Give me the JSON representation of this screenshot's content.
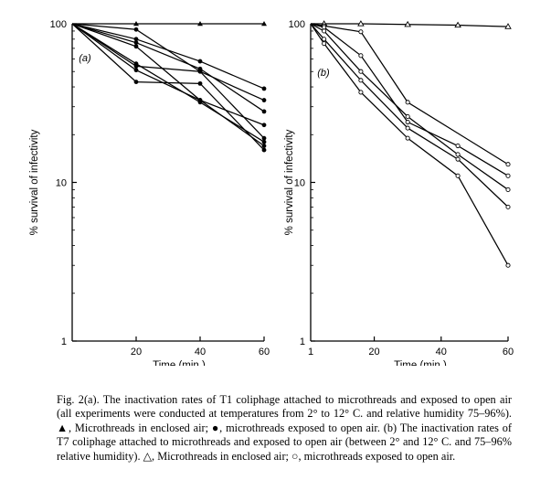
{
  "chart_data": [
    {
      "type": "line",
      "panel_label": "(a)",
      "ylabel": "% survival of infectivity",
      "xlabel": "Time (min.)",
      "y_scale": "log",
      "ylim": [
        1,
        100
      ],
      "xlim": [
        0,
        60
      ],
      "x_ticks": [
        "20",
        "40",
        "60"
      ],
      "y_ticks": [
        "1",
        "10",
        "100"
      ],
      "series": [
        {
          "marker": "triangle-filled",
          "points": [
            [
              0,
              100
            ],
            [
              20,
              100
            ],
            [
              40,
              100
            ],
            [
              60,
              100
            ]
          ]
        },
        {
          "marker": "circle-filled",
          "points": [
            [
              0,
              100
            ],
            [
              20,
              80
            ],
            [
              40,
              58
            ],
            [
              60,
              39
            ]
          ]
        },
        {
          "marker": "circle-filled",
          "points": [
            [
              0,
              100
            ],
            [
              20,
              92
            ],
            [
              40,
              50
            ],
            [
              60,
              33
            ]
          ]
        },
        {
          "marker": "circle-filled",
          "points": [
            [
              0,
              100
            ],
            [
              20,
              76
            ],
            [
              40,
              52
            ],
            [
              60,
              28
            ]
          ]
        },
        {
          "marker": "circle-filled",
          "points": [
            [
              0,
              100
            ],
            [
              20,
              72
            ],
            [
              40,
              33
            ],
            [
              60,
              23
            ]
          ]
        },
        {
          "marker": "circle-filled",
          "points": [
            [
              0,
              100
            ],
            [
              20,
              54
            ],
            [
              40,
              50
            ],
            [
              60,
              19
            ]
          ]
        },
        {
          "marker": "circle-filled",
          "points": [
            [
              0,
              100
            ],
            [
              20,
              51
            ],
            [
              40,
              33
            ],
            [
              60,
              17
            ]
          ]
        },
        {
          "marker": "circle-filled",
          "points": [
            [
              0,
              100
            ],
            [
              20,
              43
            ],
            [
              40,
              42
            ],
            [
              60,
              16
            ]
          ]
        },
        {
          "marker": "circle-filled",
          "points": [
            [
              0,
              100
            ],
            [
              20,
              56
            ],
            [
              40,
              32
            ],
            [
              60,
              18
            ]
          ]
        }
      ]
    },
    {
      "type": "line",
      "panel_label": "(b)",
      "ylabel": "% survival of infectivity",
      "xlabel": "Time (min.)",
      "y_scale": "log",
      "ylim": [
        1,
        100
      ],
      "xlim": [
        1,
        60
      ],
      "x_ticks": [
        "1",
        "20",
        "40",
        "60"
      ],
      "y_ticks": [
        "1",
        "10",
        "100"
      ],
      "series": [
        {
          "marker": "triangle-open",
          "points": [
            [
              1,
              100
            ],
            [
              5,
              100
            ],
            [
              16,
              100
            ],
            [
              30,
              99
            ],
            [
              45,
              98
            ],
            [
              60,
              96
            ]
          ]
        },
        {
          "marker": "circle-open",
          "points": [
            [
              1,
              100
            ],
            [
              5,
              97
            ],
            [
              16,
              89
            ],
            [
              30,
              32
            ],
            [
              60,
              13
            ]
          ]
        },
        {
          "marker": "circle-open",
          "points": [
            [
              1,
              100
            ],
            [
              5,
              95
            ],
            [
              16,
              63
            ],
            [
              30,
              24
            ],
            [
              45,
              17
            ],
            [
              60,
              11
            ]
          ]
        },
        {
          "marker": "circle-open",
          "points": [
            [
              1,
              100
            ],
            [
              5,
              90
            ],
            [
              16,
              50
            ],
            [
              30,
              26
            ],
            [
              45,
              15
            ],
            [
              60,
              9
            ]
          ]
        },
        {
          "marker": "circle-open",
          "points": [
            [
              1,
              100
            ],
            [
              5,
              80
            ],
            [
              16,
              44
            ],
            [
              30,
              22
            ],
            [
              45,
              14
            ],
            [
              60,
              7
            ]
          ]
        },
        {
          "marker": "circle-open",
          "points": [
            [
              1,
              100
            ],
            [
              5,
              75
            ],
            [
              16,
              37
            ],
            [
              30,
              19
            ],
            [
              45,
              11
            ],
            [
              60,
              3
            ]
          ]
        }
      ]
    }
  ],
  "caption": "Fig. 2(a). The inactivation rates of T1 coliphage attached to microthreads and exposed to open air (all experiments were conducted at temperatures from 2° to 12° C. and relative humidity 75–96%). ▲, Microthreads in enclosed air; ●, microthreads exposed to open air. (b) The inactivation rates of T7 coliphage attached to microthreads and exposed to open air (between 2° and 12° C. and 75–96% relative humidity). △, Microthreads in enclosed air; ○, microthreads exposed to open air."
}
